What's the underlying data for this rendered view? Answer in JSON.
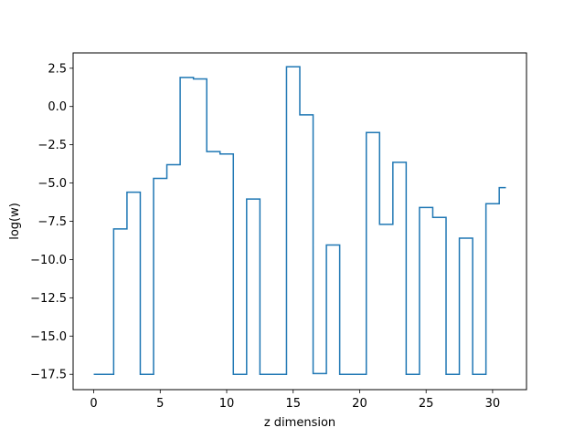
{
  "chart_data": {
    "type": "line",
    "drawstyle": "steps-mid",
    "title": "",
    "xlabel": "z dimension",
    "ylabel": "log(w)",
    "xlim": [
      -1.55,
      32.55
    ],
    "ylim": [
      -18.5,
      3.5
    ],
    "xticks": [
      0,
      5,
      10,
      15,
      20,
      25,
      30
    ],
    "yticks": [
      -17.5,
      -15.0,
      -12.5,
      -10.0,
      -7.5,
      -5.0,
      -2.5,
      0.0,
      2.5
    ],
    "ytick_labels": [
      "−17.5",
      "−15.0",
      "−12.5",
      "−10.0",
      "−7.5",
      "−5.0",
      "−2.5",
      "0.0",
      "2.5"
    ],
    "grid": false,
    "legend": "none",
    "colors": {
      "line": "#1f77b4"
    },
    "series": [
      {
        "x": [
          0,
          1,
          2,
          3,
          4,
          5,
          6,
          7,
          8,
          9,
          10,
          11,
          12,
          13,
          14,
          15,
          16,
          17,
          18,
          19,
          20,
          21,
          22,
          23,
          24,
          25,
          26,
          27,
          28,
          29,
          30,
          31
        ],
        "values": [
          -17.5,
          -17.5,
          -8.0,
          -5.6,
          -17.5,
          -4.7,
          -3.8,
          1.9,
          1.8,
          -2.95,
          -3.1,
          -17.5,
          -6.05,
          -17.5,
          -17.5,
          2.6,
          -0.55,
          -17.45,
          -9.05,
          -17.5,
          -17.5,
          -1.7,
          -7.7,
          -3.65,
          -17.5,
          -6.6,
          -7.25,
          -17.5,
          -8.6,
          -17.5,
          -6.35,
          -5.3
        ]
      }
    ]
  }
}
